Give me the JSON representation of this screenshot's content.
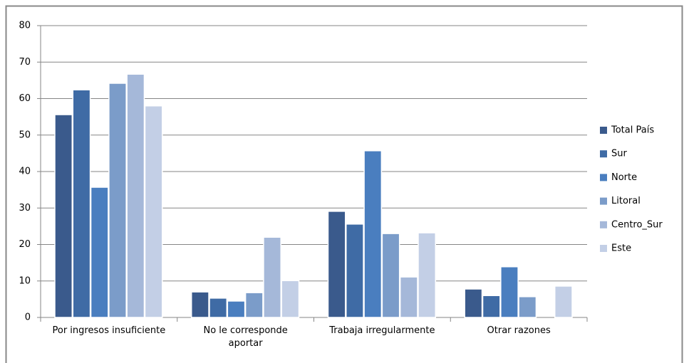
{
  "chart_data": {
    "type": "bar",
    "categories": [
      "Por ingresos insuficiente",
      "No le corresponde\naportar",
      "Trabaja irregularmente",
      "Otrar razones"
    ],
    "series": [
      {
        "name": "Total País",
        "color": "#3a5a8c",
        "values": [
          55.6,
          7.0,
          29.1,
          7.8
        ]
      },
      {
        "name": "Sur",
        "color": "#3f6ba5",
        "values": [
          62.4,
          5.3,
          25.6,
          6.0
        ]
      },
      {
        "name": "Norte",
        "color": "#4a7ebf",
        "values": [
          35.7,
          4.5,
          45.7,
          13.9
        ]
      },
      {
        "name": "Litoral",
        "color": "#7b9cc9",
        "values": [
          64.2,
          6.8,
          23.0,
          5.7
        ]
      },
      {
        "name": "Centro_Sur",
        "color": "#a5b8d9",
        "values": [
          66.7,
          22.0,
          11.1,
          null
        ]
      },
      {
        "name": "Este",
        "color": "#c3cfe6",
        "values": [
          58.0,
          10.1,
          23.2,
          8.6
        ]
      }
    ],
    "ylim": [
      0,
      80
    ],
    "yticks": [
      0,
      10,
      20,
      30,
      40,
      50,
      60,
      70,
      80
    ],
    "grid": true,
    "legend": "right"
  }
}
